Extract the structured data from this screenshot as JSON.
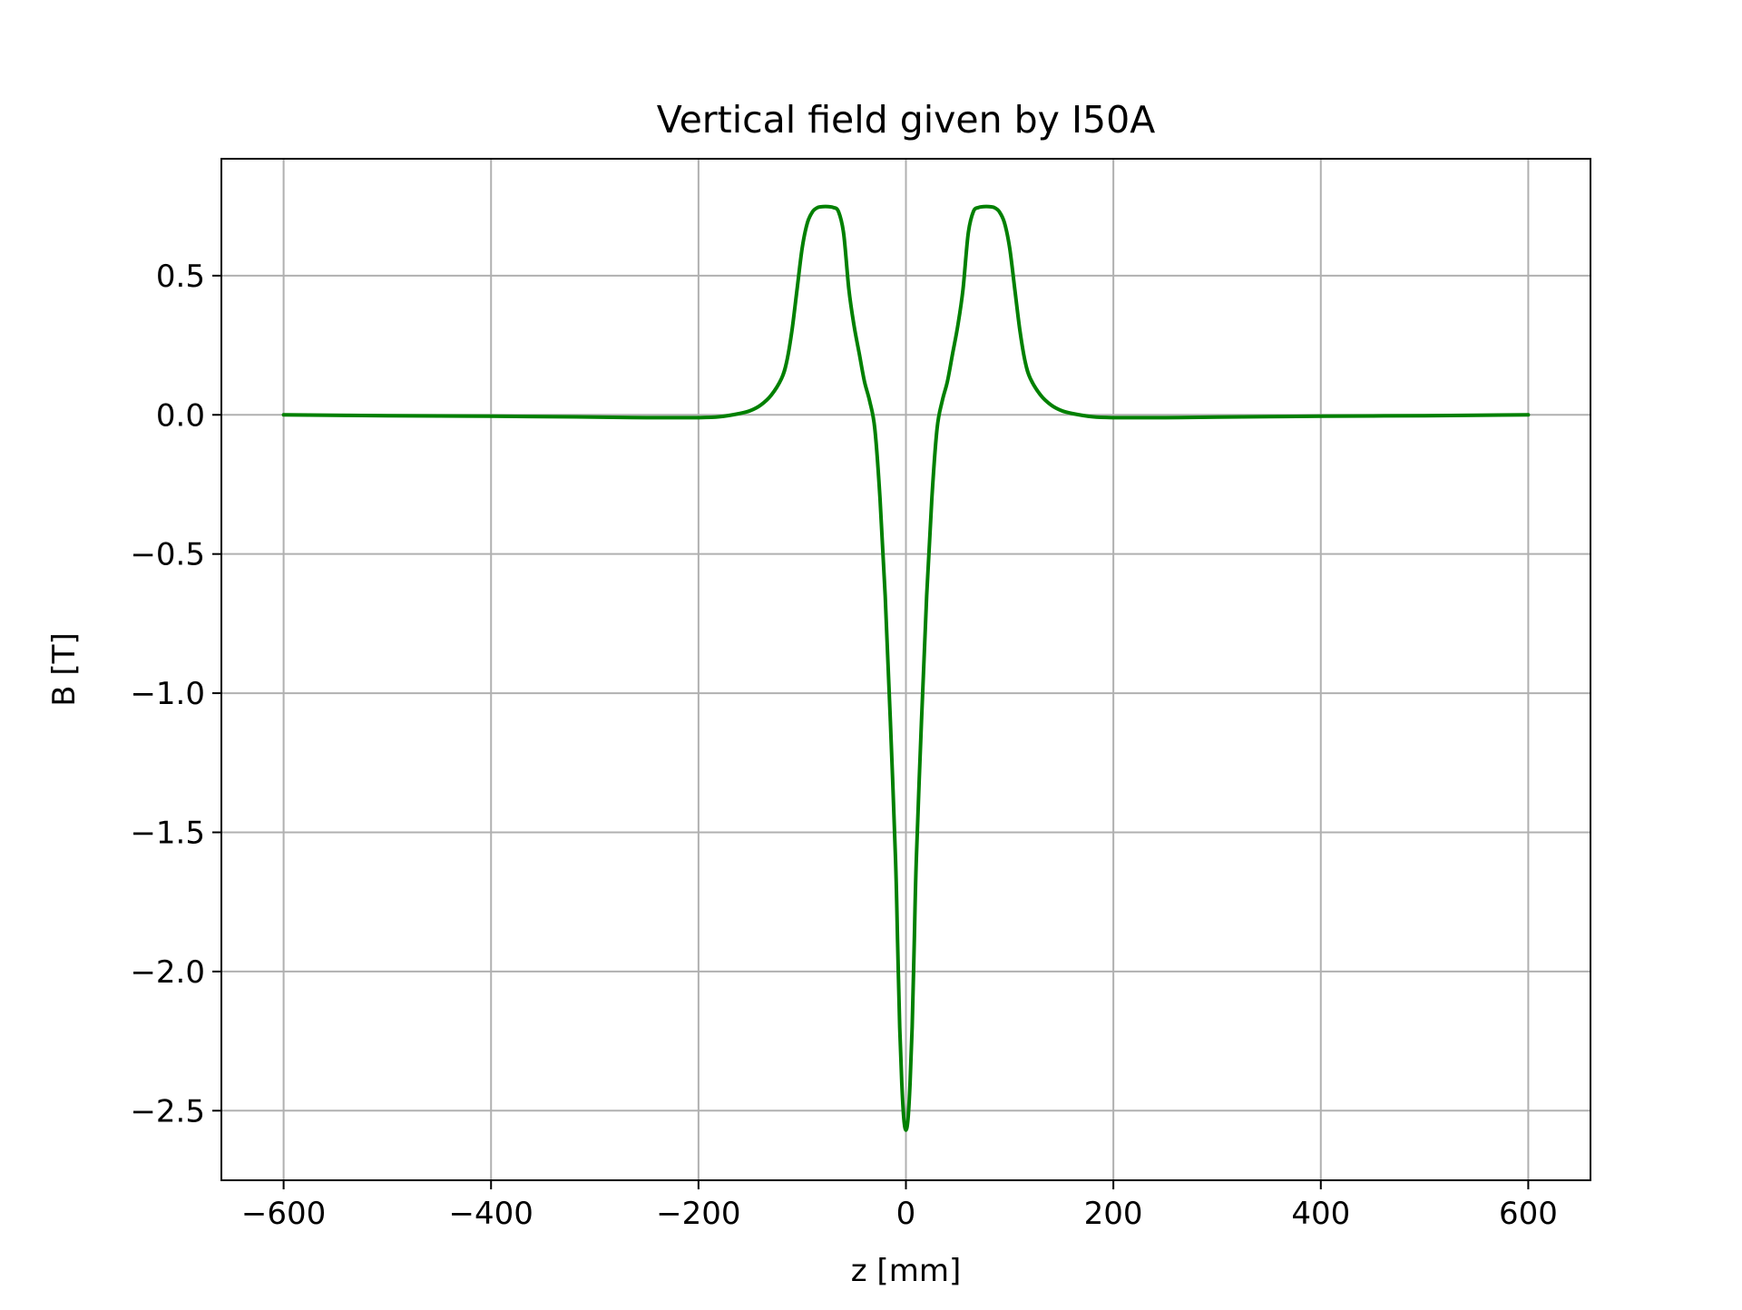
{
  "chart_data": {
    "type": "line",
    "title": "Vertical field given by I50A",
    "xlabel": "z [mm]",
    "ylabel": "B [T]",
    "xlim": [
      -660,
      660
    ],
    "ylim": [
      -2.75,
      0.92
    ],
    "grid": true,
    "x_ticks": [
      -600,
      -400,
      -200,
      0,
      200,
      400,
      600
    ],
    "x_tick_labels": [
      "−600",
      "−400",
      "−200",
      "0",
      "200",
      "400",
      "600"
    ],
    "y_ticks": [
      0.5,
      0.0,
      -0.5,
      -1.0,
      -1.5,
      -2.0,
      -2.5
    ],
    "y_tick_labels": [
      "0.5",
      "0.0",
      "−0.5",
      "−1.0",
      "−1.5",
      "−2.0",
      "−2.5"
    ],
    "series": [
      {
        "color": "#008000",
        "x": [
          -600,
          -500,
          -400,
          -300,
          -250,
          -200,
          -180,
          -160,
          -150,
          -140,
          -130,
          -120,
          -115,
          -110,
          -105,
          -100,
          -95,
          -90,
          -85,
          -80,
          -75,
          -70,
          -65,
          -60,
          -55,
          -50,
          -45,
          -40,
          -35,
          -30,
          -25,
          -20,
          -15,
          -10,
          -8,
          -6,
          -4,
          -2,
          0,
          2,
          4,
          6,
          8,
          10,
          15,
          20,
          25,
          30,
          35,
          40,
          45,
          50,
          55,
          60,
          65,
          70,
          75,
          80,
          85,
          90,
          95,
          100,
          105,
          110,
          115,
          120,
          130,
          140,
          150,
          160,
          180,
          200,
          250,
          300,
          400,
          500,
          600
        ],
        "y": [
          0.0,
          -0.003,
          -0.005,
          -0.008,
          -0.01,
          -0.01,
          -0.007,
          0.005,
          0.015,
          0.035,
          0.07,
          0.13,
          0.19,
          0.3,
          0.45,
          0.6,
          0.69,
          0.73,
          0.745,
          0.748,
          0.748,
          0.745,
          0.73,
          0.65,
          0.45,
          0.32,
          0.22,
          0.12,
          0.05,
          -0.05,
          -0.3,
          -0.65,
          -1.1,
          -1.6,
          -1.9,
          -2.2,
          -2.4,
          -2.53,
          -2.57,
          -2.53,
          -2.4,
          -2.2,
          -1.9,
          -1.6,
          -1.1,
          -0.65,
          -0.3,
          -0.05,
          0.05,
          0.12,
          0.22,
          0.32,
          0.45,
          0.65,
          0.73,
          0.745,
          0.748,
          0.748,
          0.745,
          0.73,
          0.69,
          0.6,
          0.45,
          0.3,
          0.19,
          0.13,
          0.07,
          0.035,
          0.015,
          0.005,
          -0.007,
          -0.01,
          -0.01,
          -0.008,
          -0.005,
          -0.003,
          0.0
        ]
      }
    ]
  }
}
